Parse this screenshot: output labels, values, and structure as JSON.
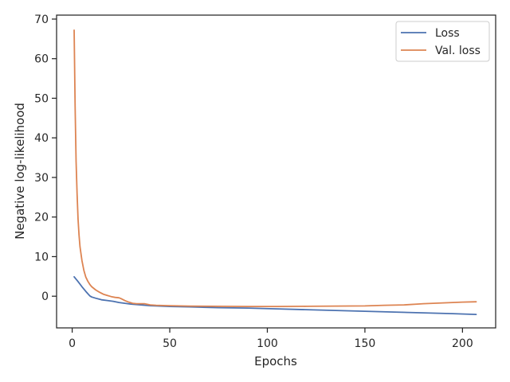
{
  "chart_data": {
    "type": "line",
    "title": "",
    "xlabel": "Epochs",
    "ylabel": "Negative log-likelihood",
    "xlim": [
      -8,
      217
    ],
    "ylim": [
      -8,
      71
    ],
    "xticks": [
      0,
      50,
      100,
      150,
      200
    ],
    "yticks": [
      0,
      10,
      20,
      30,
      40,
      50,
      60,
      70
    ],
    "grid": false,
    "legend_position": "top-right",
    "series": [
      {
        "name": "Loss",
        "color": "#4c72b0",
        "x": [
          1,
          3,
          5,
          7,
          9,
          10,
          12,
          15,
          18,
          21,
          24,
          27,
          30,
          35,
          40,
          50,
          60,
          75,
          90,
          105,
          120,
          135,
          150,
          165,
          180,
          195,
          207
        ],
        "y": [
          4.9,
          3.7,
          2.4,
          1.2,
          0.1,
          -0.2,
          -0.5,
          -0.9,
          -1.1,
          -1.3,
          -1.6,
          -1.8,
          -2.0,
          -2.2,
          -2.4,
          -2.6,
          -2.7,
          -2.9,
          -3.0,
          -3.2,
          -3.4,
          -3.6,
          -3.8,
          -4.0,
          -4.2,
          -4.4,
          -4.6
        ]
      },
      {
        "name": "Val. loss",
        "color": "#dd8452",
        "x": [
          1,
          1.5,
          2,
          2.5,
          3,
          3.5,
          4,
          5,
          6,
          7,
          8,
          9,
          10,
          12,
          14,
          16,
          18,
          20,
          22,
          24,
          25,
          27,
          29,
          31,
          33,
          35,
          37,
          38,
          40,
          43,
          50,
          60,
          75,
          90,
          105,
          120,
          135,
          150,
          160,
          170,
          180,
          190,
          200,
          207
        ],
        "y": [
          67.2,
          48,
          34,
          26,
          19.5,
          15.5,
          12.5,
          9,
          6.5,
          4.8,
          3.8,
          3.0,
          2.4,
          1.6,
          1.0,
          0.5,
          0.2,
          -0.1,
          -0.3,
          -0.4,
          -0.6,
          -1.1,
          -1.5,
          -1.8,
          -1.9,
          -1.9,
          -1.9,
          -2.0,
          -2.2,
          -2.3,
          -2.4,
          -2.5,
          -2.55,
          -2.6,
          -2.6,
          -2.55,
          -2.5,
          -2.45,
          -2.3,
          -2.2,
          -1.9,
          -1.7,
          -1.5,
          -1.4
        ]
      }
    ]
  }
}
